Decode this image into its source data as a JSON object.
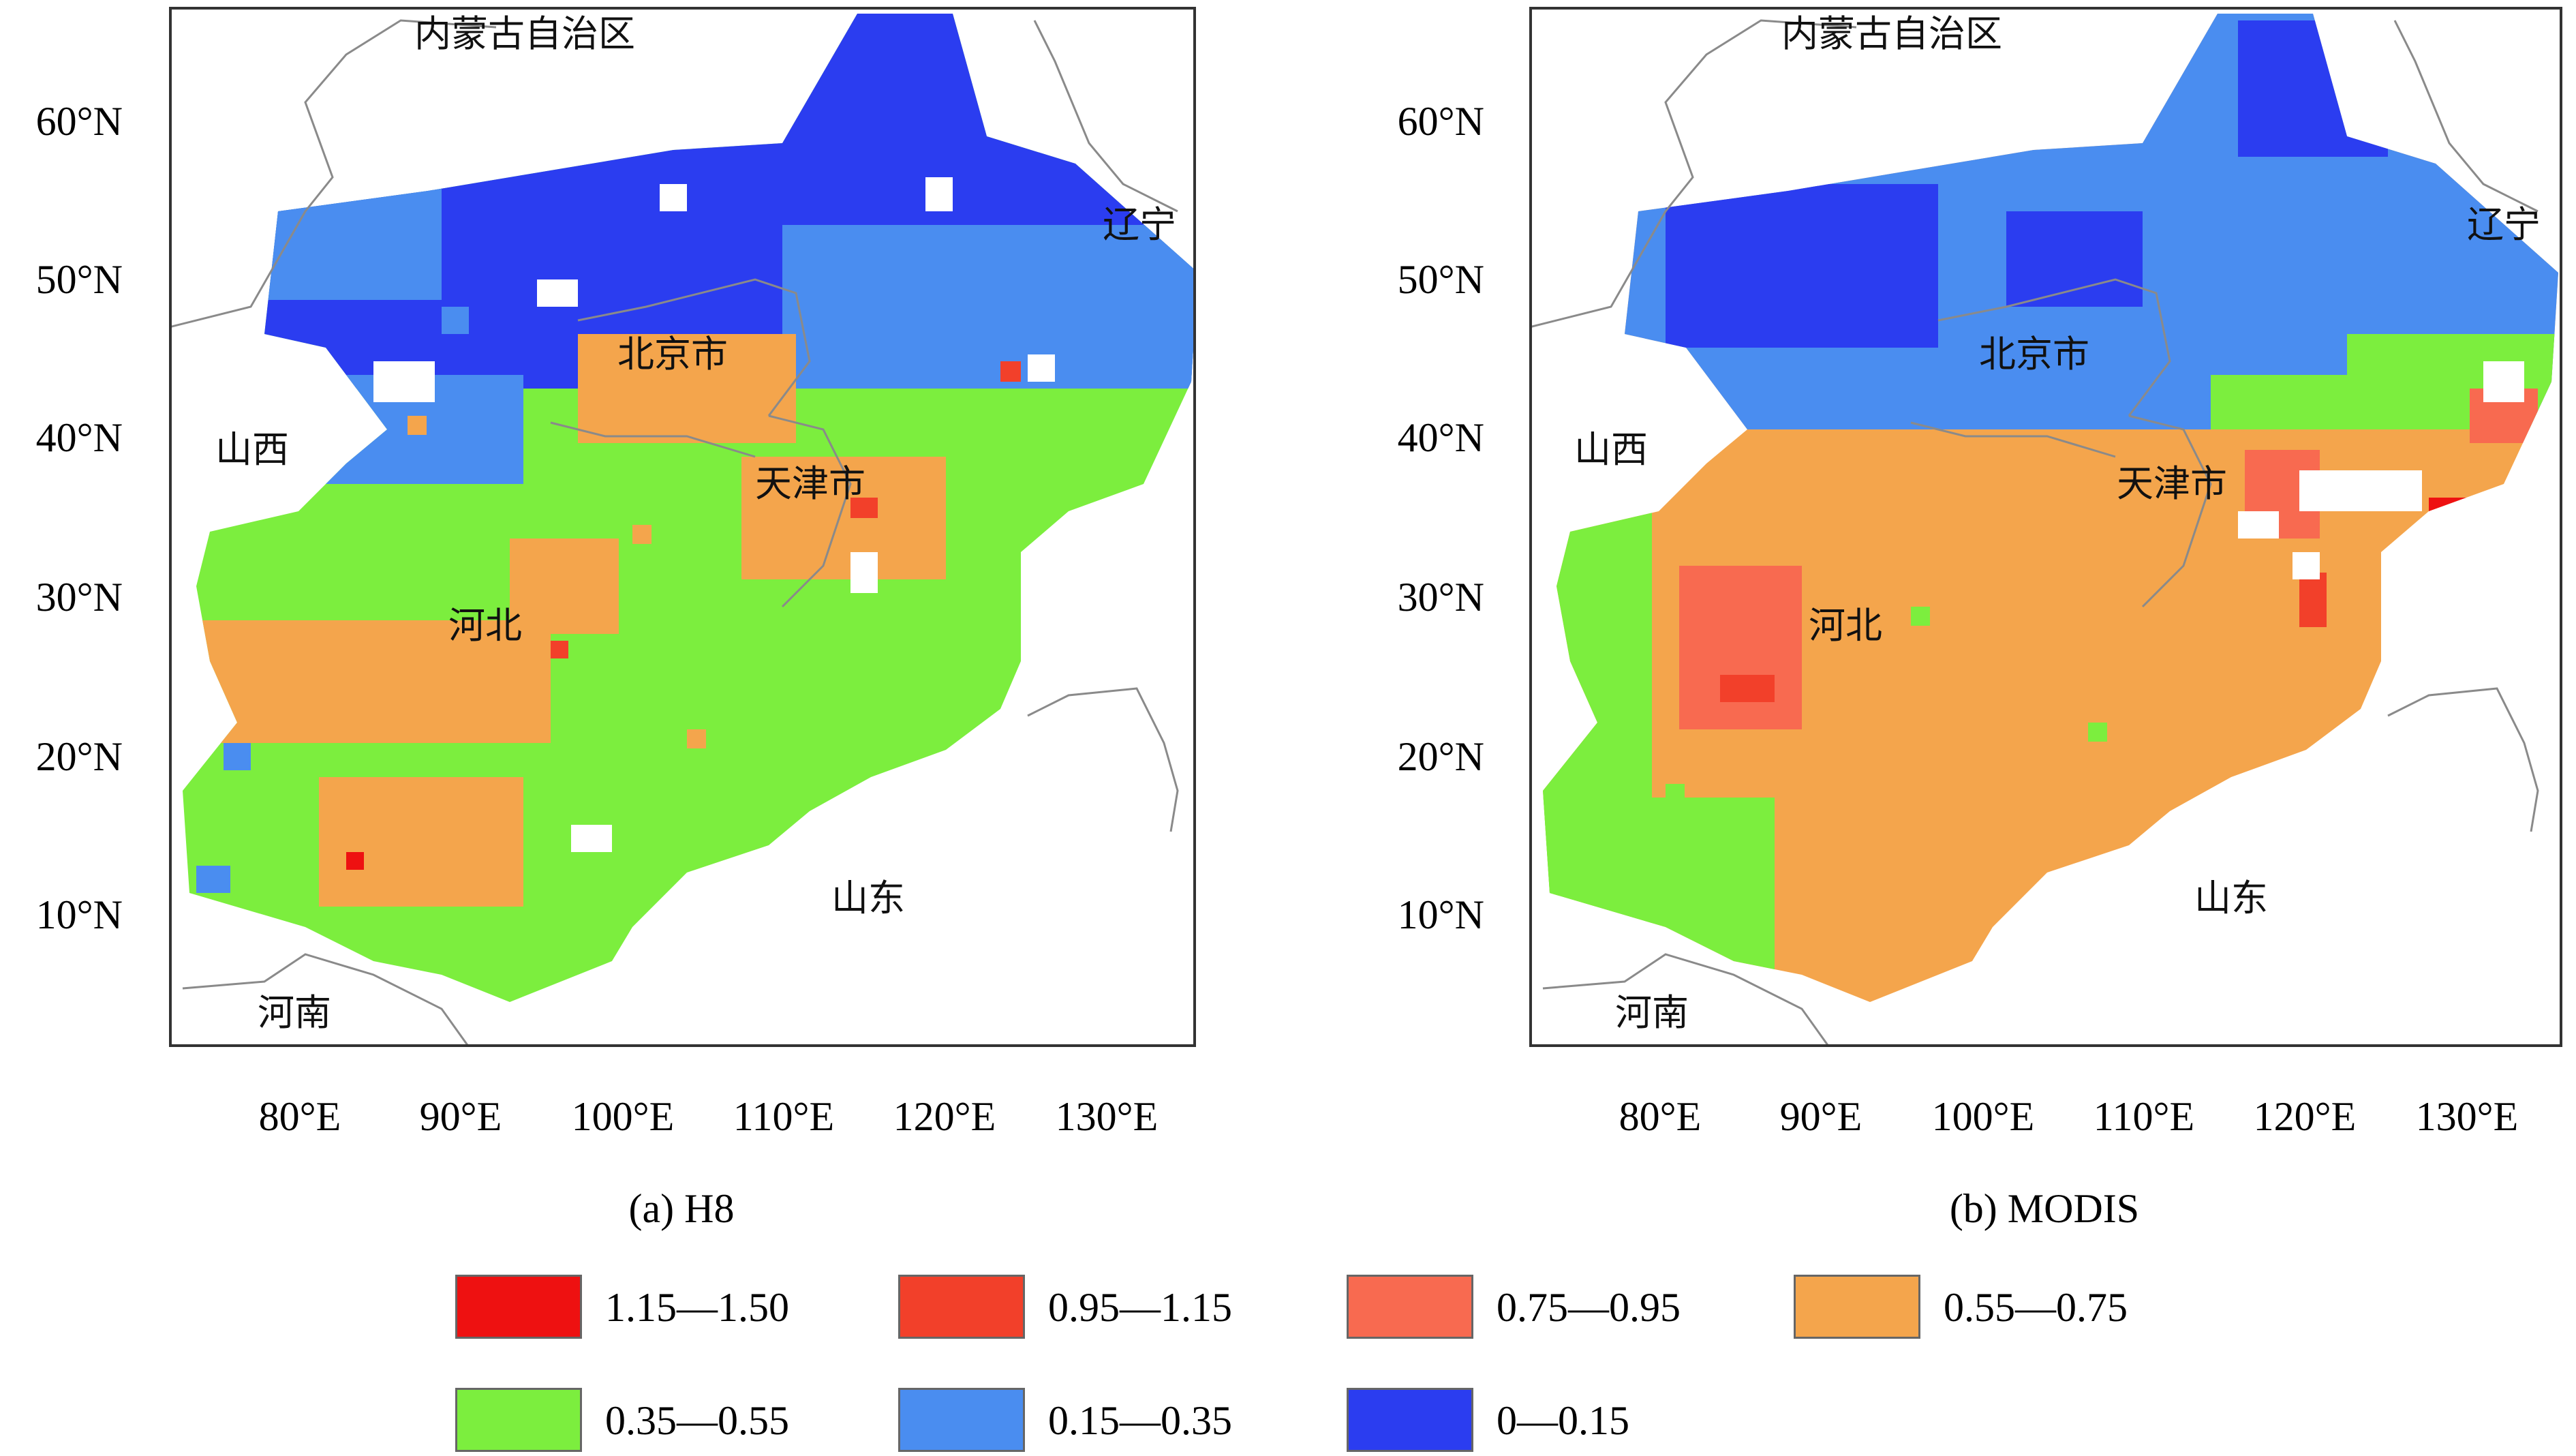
{
  "legend": {
    "bins": [
      {
        "label": "1.15—1.50",
        "color": "#ee1111",
        "range": [
          1.15,
          1.5
        ]
      },
      {
        "label": "0.95—1.15",
        "color": "#f2402a",
        "range": [
          0.95,
          1.15
        ]
      },
      {
        "label": "0.75—0.95",
        "color": "#f86a50",
        "range": [
          0.75,
          0.95
        ]
      },
      {
        "label": "0.55—0.75",
        "color": "#f4a54c",
        "range": [
          0.55,
          0.75
        ]
      },
      {
        "label": "0.35—0.55",
        "color": "#7cee3e",
        "range": [
          0.35,
          0.55
        ]
      },
      {
        "label": "0.15—0.35",
        "color": "#4a8df0",
        "range": [
          0.15,
          0.35
        ]
      },
      {
        "label": "0—0.15",
        "color": "#2b3df0",
        "range": [
          0,
          0.15
        ]
      }
    ]
  },
  "chart_data": [
    {
      "type": "heatmap",
      "panel_caption": "(a) H8",
      "x_ticks": [
        "80°E",
        "90°E",
        "100°E",
        "110°E",
        "120°E",
        "130°E"
      ],
      "y_ticks": [
        "60°N",
        "50°N",
        "40°N",
        "30°N",
        "20°N",
        "10°N"
      ],
      "labels": [
        "内蒙古自治区",
        "辽宁",
        "北京市",
        "山西",
        "天津市",
        "河北",
        "山东",
        "河南"
      ],
      "zones": {
        "north_band": "0—0.15",
        "northeast_band": "0.15—0.35",
        "beijing_area": "0.55—0.75",
        "tianjin_area": "0.55—0.75",
        "hebei_plain": "0.35—0.55",
        "hebei_patches": "0.55—0.75",
        "coastal_spots": "0.95—1.15"
      }
    },
    {
      "type": "heatmap",
      "panel_caption": "(b) MODIS",
      "x_ticks": [
        "80°E",
        "90°E",
        "100°E",
        "110°E",
        "120°E",
        "130°E"
      ],
      "y_ticks": [
        "60°N",
        "50°N",
        "40°N",
        "30°N",
        "20°N",
        "10°N"
      ],
      "labels": [
        "内蒙古自治区",
        "辽宁",
        "北京市",
        "山西",
        "天津市",
        "河北",
        "山东",
        "河南"
      ],
      "zones": {
        "north_band": "0.15—0.35",
        "north_patches": "0—0.15",
        "beijing_area": "0.55—0.75",
        "tianjin_area": "0.75—0.95",
        "hebei_plain": "0.55—0.75",
        "hebei_edges": "0.35—0.55",
        "central_hotspot": "0.75—0.95",
        "coastal_spots": "1.15—1.50"
      }
    }
  ]
}
